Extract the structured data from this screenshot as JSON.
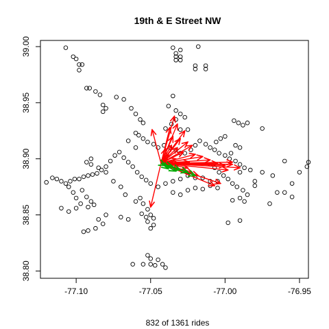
{
  "chart_data": {
    "type": "scatter",
    "title": "19th & E Street NW",
    "xlabel": "832  of  1361  rides",
    "ylabel": "",
    "xlim": [
      -77.124,
      -76.944
    ],
    "ylim": [
      38.7935,
      39.0055
    ],
    "xticks": [
      -77.1,
      -77.05,
      -77.0,
      -76.95
    ],
    "xtick_labels": [
      "-77.10",
      "-77.05",
      "-77.00",
      "-76.95"
    ],
    "yticks": [
      38.8,
      38.85,
      38.9,
      38.95,
      39.0
    ],
    "ytick_labels": [
      "38.80",
      "38.85",
      "38.90",
      "38.95",
      "39.00"
    ],
    "origin": [
      -77.043,
      38.896
    ],
    "colors": {
      "points": "#000000",
      "arrows_out": "#ff0000",
      "arrows_in": "#00aa00"
    },
    "stations": [
      [
        -77.107,
        38.999
      ],
      [
        -77.035,
        38.999
      ],
      [
        -77.03,
        38.997
      ],
      [
        -77.033,
        38.994
      ],
      [
        -77.033,
        38.991
      ],
      [
        -77.033,
        38.988
      ],
      [
        -77.03,
        38.991
      ],
      [
        -77.03,
        38.988
      ],
      [
        -77.018,
        39.0
      ],
      [
        -77.02,
        38.983
      ],
      [
        -77.02,
        38.98
      ],
      [
        -77.013,
        38.983
      ],
      [
        -77.013,
        38.98
      ],
      [
        -77.102,
        38.991
      ],
      [
        -77.1,
        38.989
      ],
      [
        -77.098,
        38.984
      ],
      [
        -77.096,
        38.984
      ],
      [
        -77.098,
        38.979
      ],
      [
        -77.093,
        38.963
      ],
      [
        -77.091,
        38.963
      ],
      [
        -77.087,
        38.96
      ],
      [
        -77.084,
        38.957
      ],
      [
        -77.082,
        38.948
      ],
      [
        -77.08,
        38.945
      ],
      [
        -77.082,
        38.942
      ],
      [
        -77.073,
        38.955
      ],
      [
        -77.068,
        38.953
      ],
      [
        -77.063,
        38.945
      ],
      [
        -77.06,
        38.94
      ],
      [
        -77.057,
        38.935
      ],
      [
        -77.055,
        38.932
      ],
      [
        -77.065,
        38.916
      ],
      [
        -77.06,
        38.91
      ],
      [
        -77.035,
        38.956
      ],
      [
        -77.038,
        38.947
      ],
      [
        -77.033,
        38.943
      ],
      [
        -77.03,
        38.94
      ],
      [
        -77.027,
        38.937
      ],
      [
        -77.033,
        38.935
      ],
      [
        -77.036,
        38.931
      ],
      [
        -77.04,
        38.927
      ],
      [
        -77.03,
        38.926
      ],
      [
        -77.025,
        38.926
      ],
      [
        -77.06,
        38.923
      ],
      [
        -77.058,
        38.921
      ],
      [
        -77.055,
        38.918
      ],
      [
        -77.052,
        38.915
      ],
      [
        -77.048,
        38.913
      ],
      [
        -77.045,
        38.91
      ],
      [
        -77.041,
        38.912
      ],
      [
        -77.037,
        38.91
      ],
      [
        -77.033,
        38.908
      ],
      [
        -77.03,
        38.905
      ],
      [
        -77.027,
        38.905
      ],
      [
        -77.023,
        38.908
      ],
      [
        -77.02,
        38.912
      ],
      [
        -77.017,
        38.916
      ],
      [
        -77.013,
        38.913
      ],
      [
        -77.01,
        38.91
      ],
      [
        -77.007,
        38.908
      ],
      [
        -77.004,
        38.905
      ],
      [
        -77.0,
        38.903
      ],
      [
        -76.997,
        38.9
      ],
      [
        -76.993,
        38.898
      ],
      [
        -76.99,
        38.895
      ],
      [
        -76.987,
        38.892
      ],
      [
        -76.983,
        38.89
      ],
      [
        -76.994,
        38.934
      ],
      [
        -76.991,
        38.932
      ],
      [
        -76.988,
        38.93
      ],
      [
        -76.985,
        38.932
      ],
      [
        -76.975,
        38.927
      ],
      [
        -77.0,
        38.92
      ],
      [
        -77.003,
        38.918
      ],
      [
        -77.006,
        38.915
      ],
      [
        -76.993,
        38.912
      ],
      [
        -76.99,
        38.91
      ],
      [
        -76.996,
        38.905
      ],
      [
        -77.01,
        38.895
      ],
      [
        -77.007,
        38.892
      ],
      [
        -77.004,
        38.888
      ],
      [
        -77.001,
        38.885
      ],
      [
        -76.998,
        38.882
      ],
      [
        -76.995,
        38.878
      ],
      [
        -76.992,
        38.875
      ],
      [
        -76.988,
        38.872
      ],
      [
        -76.985,
        38.868
      ],
      [
        -76.98,
        38.88
      ],
      [
        -76.975,
        38.888
      ],
      [
        -76.96,
        38.898
      ],
      [
        -76.95,
        38.888
      ],
      [
        -76.945,
        38.893
      ],
      [
        -76.944,
        38.897
      ],
      [
        -76.955,
        38.878
      ],
      [
        -76.96,
        38.87
      ],
      [
        -76.955,
        38.866
      ],
      [
        -76.965,
        38.87
      ],
      [
        -76.97,
        38.86
      ],
      [
        -76.98,
        38.876
      ],
      [
        -76.987,
        38.862
      ],
      [
        -76.99,
        38.865
      ],
      [
        -76.995,
        38.863
      ],
      [
        -76.998,
        38.843
      ],
      [
        -76.99,
        38.845
      ],
      [
        -77.005,
        38.88
      ],
      [
        -77.01,
        38.88
      ],
      [
        -77.015,
        38.883
      ],
      [
        -77.02,
        38.883
      ],
      [
        -77.025,
        38.885
      ],
      [
        -77.03,
        38.882
      ],
      [
        -77.035,
        38.88
      ],
      [
        -77.04,
        38.878
      ],
      [
        -77.045,
        38.875
      ],
      [
        -77.05,
        38.878
      ],
      [
        -77.053,
        38.881
      ],
      [
        -77.056,
        38.884
      ],
      [
        -77.059,
        38.888
      ],
      [
        -77.062,
        38.893
      ],
      [
        -77.065,
        38.897
      ],
      [
        -77.068,
        38.901
      ],
      [
        -77.071,
        38.906
      ],
      [
        -77.074,
        38.903
      ],
      [
        -77.077,
        38.898
      ],
      [
        -77.08,
        38.893
      ],
      [
        -77.083,
        38.89
      ],
      [
        -77.086,
        38.887
      ],
      [
        -77.089,
        38.886
      ],
      [
        -77.092,
        38.885
      ],
      [
        -77.095,
        38.884
      ],
      [
        -77.098,
        38.882
      ],
      [
        -77.101,
        38.882
      ],
      [
        -77.104,
        38.88
      ],
      [
        -77.107,
        38.878
      ],
      [
        -77.11,
        38.88
      ],
      [
        -77.113,
        38.882
      ],
      [
        -77.116,
        38.883
      ],
      [
        -77.12,
        38.879
      ],
      [
        -77.105,
        38.875
      ],
      [
        -77.102,
        38.87
      ],
      [
        -77.1,
        38.865
      ],
      [
        -77.096,
        38.872
      ],
      [
        -77.093,
        38.866
      ],
      [
        -77.09,
        38.862
      ],
      [
        -77.088,
        38.859
      ],
      [
        -77.092,
        38.857
      ],
      [
        -77.097,
        38.86
      ],
      [
        -77.1,
        38.856
      ],
      [
        -77.105,
        38.853
      ],
      [
        -77.11,
        38.856
      ],
      [
        -77.085,
        38.846
      ],
      [
        -77.082,
        38.842
      ],
      [
        -77.087,
        38.838
      ],
      [
        -77.092,
        38.836
      ],
      [
        -77.095,
        38.835
      ],
      [
        -77.08,
        38.85
      ],
      [
        -77.07,
        38.848
      ],
      [
        -77.065,
        38.846
      ],
      [
        -77.06,
        38.862
      ],
      [
        -77.057,
        38.865
      ],
      [
        -77.055,
        38.86
      ],
      [
        -77.052,
        38.855
      ],
      [
        -77.05,
        38.85
      ],
      [
        -77.048,
        38.847
      ],
      [
        -77.052,
        38.844
      ],
      [
        -77.048,
        38.841
      ],
      [
        -77.05,
        38.838
      ],
      [
        -77.053,
        38.848
      ],
      [
        -77.056,
        38.851
      ],
      [
        -77.067,
        38.868
      ],
      [
        -77.07,
        38.875
      ],
      [
        -77.075,
        38.88
      ],
      [
        -77.08,
        38.888
      ],
      [
        -77.085,
        38.892
      ],
      [
        -77.09,
        38.895
      ],
      [
        -77.093,
        38.897
      ],
      [
        -77.09,
        38.9
      ],
      [
        -77.052,
        38.814
      ],
      [
        -77.05,
        38.811
      ],
      [
        -77.045,
        38.81
      ],
      [
        -77.042,
        38.806
      ],
      [
        -77.04,
        38.803
      ],
      [
        -77.047,
        38.805
      ],
      [
        -77.055,
        38.806
      ],
      [
        -77.05,
        38.806
      ],
      [
        -77.062,
        38.806
      ],
      [
        -77.035,
        38.87
      ],
      [
        -77.03,
        38.868
      ],
      [
        -77.025,
        38.872
      ],
      [
        -77.02,
        38.874
      ],
      [
        -77.015,
        38.873
      ],
      [
        -77.01,
        38.876
      ],
      [
        -77.005,
        38.874
      ],
      [
        -76.99,
        38.888
      ],
      [
        -76.968,
        38.885
      ]
    ],
    "arrows_out": [
      [
        -77.034,
        38.938
      ],
      [
        -77.049,
        38.926
      ],
      [
        -77.05,
        38.857
      ],
      [
        -77.037,
        38.928
      ],
      [
        -77.032,
        38.931
      ],
      [
        -77.035,
        38.92
      ],
      [
        -77.03,
        38.918
      ],
      [
        -77.027,
        38.925
      ],
      [
        -77.025,
        38.915
      ],
      [
        -77.022,
        38.912
      ],
      [
        -77.02,
        38.904
      ],
      [
        -77.015,
        38.902
      ],
      [
        -77.01,
        38.899
      ],
      [
        -77.005,
        38.896
      ],
      [
        -77.0,
        38.894
      ],
      [
        -76.995,
        38.895
      ],
      [
        -76.99,
        38.892
      ],
      [
        -76.995,
        38.897
      ],
      [
        -76.998,
        38.89
      ],
      [
        -77.003,
        38.878
      ],
      [
        -77.007,
        38.876
      ],
      [
        -77.018,
        38.885
      ],
      [
        -77.022,
        38.888
      ],
      [
        -77.025,
        38.892
      ],
      [
        -77.03,
        38.895
      ],
      [
        -77.033,
        38.9
      ],
      [
        -77.038,
        38.904
      ],
      [
        -77.04,
        38.909
      ],
      [
        -77.036,
        38.912
      ],
      [
        -77.032,
        38.91
      ],
      [
        -77.028,
        38.906
      ],
      [
        -77.024,
        38.897
      ]
    ],
    "arrows_in": [
      [
        -77.02,
        38.885
      ],
      [
        -77.025,
        38.888
      ],
      [
        -77.03,
        38.89
      ],
      [
        -77.035,
        38.893
      ],
      [
        -77.038,
        38.891
      ],
      [
        -77.04,
        38.894
      ],
      [
        -77.033,
        38.889
      ]
    ]
  }
}
